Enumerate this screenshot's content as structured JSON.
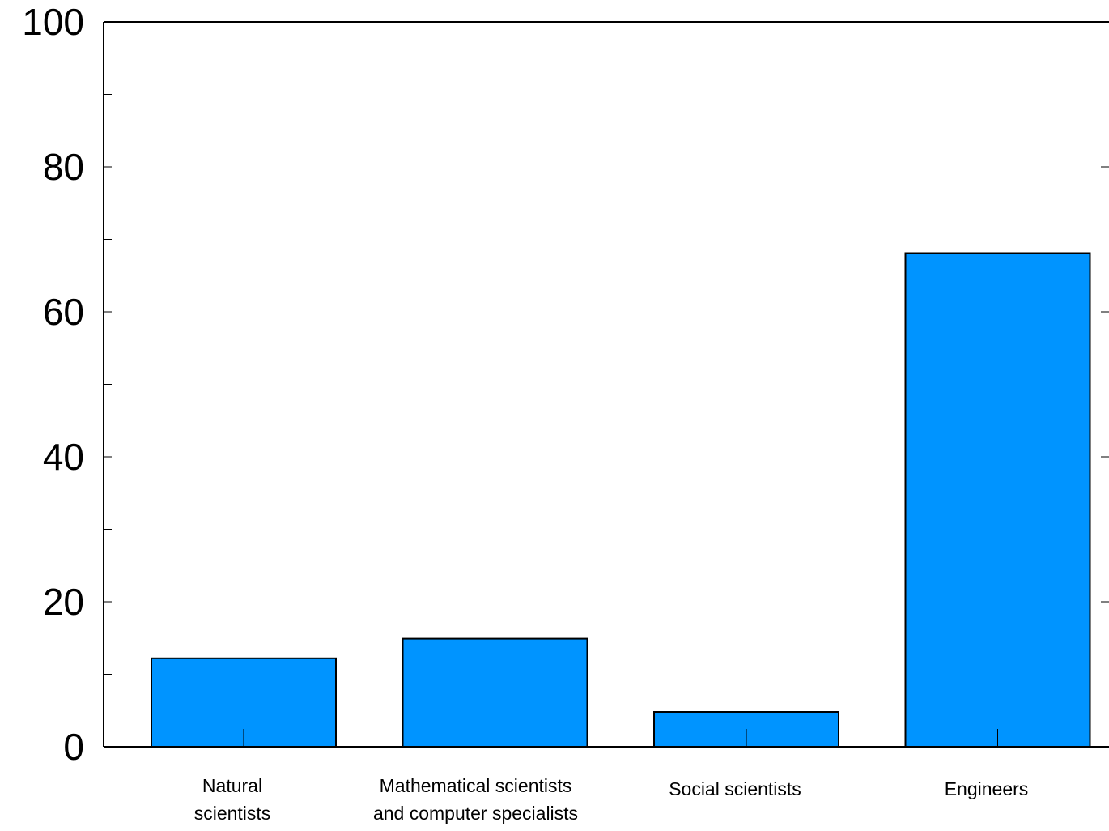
{
  "chart_data": {
    "type": "bar",
    "categories": [
      [
        "Natural",
        "scientists"
      ],
      [
        "Mathematical scientists",
        "and computer specialists"
      ],
      [
        "Social scientists"
      ],
      [
        "Engineers"
      ]
    ],
    "values": [
      12.2,
      14.9,
      4.8,
      68.1
    ],
    "title": "",
    "xlabel": "",
    "ylabel": "",
    "ylim": [
      0,
      100
    ],
    "yticks": [
      "0",
      "20",
      "40",
      "60",
      "80",
      "100"
    ],
    "grid": false,
    "legend": "none",
    "bar_color": "#0094ff",
    "edge_color": "#000000"
  }
}
